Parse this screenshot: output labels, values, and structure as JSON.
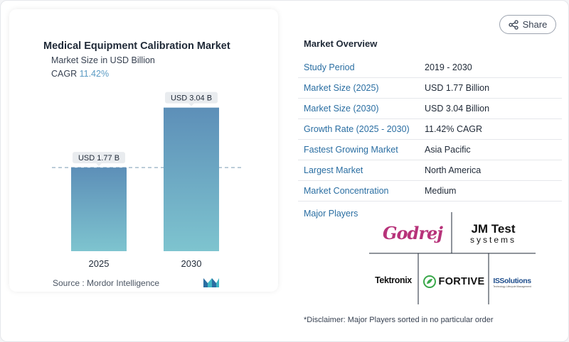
{
  "chart": {
    "title": "Medical Equipment Calibration Market",
    "subtitle": "Market Size in USD Billion",
    "cagr_label": "CAGR",
    "cagr_value": "11.42%",
    "source": "Source :  Mordor Intelligence"
  },
  "chart_data": {
    "type": "bar",
    "title": "Medical Equipment Calibration Market",
    "ylabel": "Market Size in USD Billion",
    "categories": [
      "2025",
      "2030"
    ],
    "values": [
      1.77,
      3.04
    ],
    "data_labels": [
      "USD 1.77 B",
      "USD 3.04 B"
    ],
    "ylim": [
      0,
      3.2
    ],
    "grid": false,
    "reference_line": "dashed at 2025 value",
    "colors": {
      "bar_top": "#5d8fb8",
      "bar_bottom": "#7ec4cf"
    }
  },
  "share": {
    "label": "Share"
  },
  "overview": {
    "title": "Market Overview",
    "rows": [
      {
        "key": "Study Period",
        "value": "2019 - 2030"
      },
      {
        "key": "Market Size (2025)",
        "value": "USD 1.77 Billion"
      },
      {
        "key": "Market Size (2030)",
        "value": "USD 3.04 Billion"
      },
      {
        "key": "Growth Rate (2025 - 2030)",
        "value": "11.42% CAGR"
      },
      {
        "key": "Fastest Growing Market",
        "value": "Asia Pacific"
      },
      {
        "key": "Largest Market",
        "value": "North America"
      },
      {
        "key": "Market Concentration",
        "value": "Medium"
      }
    ],
    "players_label": "Major Players"
  },
  "players": {
    "godrej": "Godrej",
    "jm_line1": "JM Test",
    "jm_line2": "systems",
    "tektronix": "Tektronix",
    "fortive": "FORTIVE",
    "iss": "ISSolutions",
    "iss_tag": "Technology Lifecycle Management"
  },
  "disclaimer": "*Disclaimer: Major Players sorted in no particular order",
  "colors": {
    "accent": "#2a6ea2",
    "cagr": "#5b9bc4"
  }
}
